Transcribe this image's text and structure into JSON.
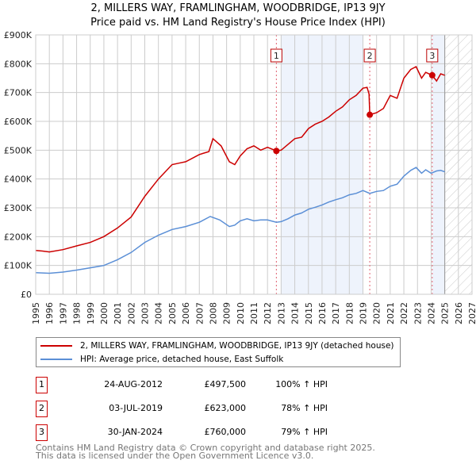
{
  "chart_data": {
    "type": "line",
    "title": "2, MILLERS WAY, FRAMLINGHAM, WOODBRIDGE, IP13 9JY",
    "subtitle": "Price paid vs. HM Land Registry's House Price Index (HPI)",
    "xlim": [
      1995,
      2027
    ],
    "ylim": [
      0,
      900000
    ],
    "x_ticks": [
      "1995",
      "1996",
      "1997",
      "1998",
      "1999",
      "2000",
      "2001",
      "2002",
      "2003",
      "2004",
      "2005",
      "2006",
      "2007",
      "2008",
      "2009",
      "2010",
      "2011",
      "2012",
      "2013",
      "2014",
      "2015",
      "2016",
      "2017",
      "2018",
      "2019",
      "2020",
      "2021",
      "2022",
      "2023",
      "2024",
      "2025",
      "2026",
      "2027"
    ],
    "y_ticks": [
      {
        "v": 0,
        "label": "£0"
      },
      {
        "v": 100000,
        "label": "£100K"
      },
      {
        "v": 200000,
        "label": "£200K"
      },
      {
        "v": 300000,
        "label": "£300K"
      },
      {
        "v": 400000,
        "label": "£400K"
      },
      {
        "v": 500000,
        "label": "£500K"
      },
      {
        "v": 600000,
        "label": "£600K"
      },
      {
        "v": 700000,
        "label": "£700K"
      },
      {
        "v": 800000,
        "label": "£800K"
      },
      {
        "v": 900000,
        "label": "£900K"
      }
    ],
    "grid": true,
    "series": [
      {
        "name": "2, MILLERS WAY, FRAMLINGHAM, WOODBRIDGE, IP13 9JY (detached house)",
        "color": "#cc0000",
        "x": [
          1995,
          1995.5,
          1996,
          1997,
          1998,
          1999,
          2000,
          2001,
          2002,
          2003,
          2004,
          2005,
          2005.5,
          2006,
          2007,
          2007.7,
          2008,
          2008.6,
          2009.2,
          2009.6,
          2010,
          2010.5,
          2011,
          2011.5,
          2012,
          2012.65,
          2013,
          2013.5,
          2014,
          2014.5,
          2015,
          2015.5,
          2016,
          2016.5,
          2017,
          2017.5,
          2018,
          2018.5,
          2019,
          2019.3,
          2019.45,
          2019.5,
          2020,
          2020.5,
          2021,
          2021.5,
          2022,
          2022.5,
          2022.9,
          2023.3,
          2023.6,
          2024.08,
          2024.4,
          2024.7,
          2025
        ],
        "y": [
          152000,
          150000,
          147000,
          155000,
          168000,
          180000,
          200000,
          230000,
          268000,
          340000,
          400000,
          450000,
          455000,
          460000,
          485000,
          495000,
          540000,
          515000,
          460000,
          450000,
          480000,
          505000,
          515000,
          500000,
          510000,
          497500,
          500000,
          520000,
          540000,
          545000,
          575000,
          590000,
          600000,
          615000,
          635000,
          650000,
          675000,
          690000,
          715000,
          718000,
          695000,
          623000,
          630000,
          645000,
          690000,
          680000,
          750000,
          780000,
          790000,
          750000,
          770000,
          760000,
          740000,
          765000,
          760000
        ]
      },
      {
        "name": "HPI: Average price, detached house, East Suffolk",
        "color": "#5b8fd6",
        "x": [
          1995,
          1996,
          1997,
          1998,
          1999,
          2000,
          2001,
          2002,
          2003,
          2004,
          2005,
          2006,
          2007,
          2007.8,
          2008.5,
          2009.2,
          2009.6,
          2010,
          2010.5,
          2011,
          2011.5,
          2012,
          2012.65,
          2013,
          2013.5,
          2014,
          2014.5,
          2015,
          2015.5,
          2016,
          2016.5,
          2017,
          2017.5,
          2018,
          2018.5,
          2019,
          2019.5,
          2020,
          2020.5,
          2021,
          2021.5,
          2022,
          2022.5,
          2022.9,
          2023.3,
          2023.6,
          2024,
          2024.4,
          2024.7,
          2025
        ],
        "y": [
          75000,
          73000,
          77000,
          84000,
          92000,
          100000,
          120000,
          145000,
          180000,
          205000,
          225000,
          235000,
          250000,
          270000,
          258000,
          235000,
          240000,
          255000,
          262000,
          255000,
          258000,
          258000,
          250000,
          252000,
          262000,
          275000,
          282000,
          295000,
          302000,
          310000,
          320000,
          328000,
          335000,
          345000,
          350000,
          360000,
          350000,
          357000,
          360000,
          375000,
          382000,
          410000,
          430000,
          440000,
          420000,
          432000,
          420000,
          428000,
          430000,
          425000
        ]
      }
    ],
    "sales": [
      {
        "label": "1",
        "x": 2012.65,
        "y": 497500,
        "date": "24-AUG-2012",
        "price": "£497,500",
        "hpi": "100% ↑ HPI"
      },
      {
        "label": "2",
        "x": 2019.5,
        "y": 623000,
        "date": "03-JUL-2019",
        "price": "£623,000",
        "hpi": "78% ↑ HPI"
      },
      {
        "label": "3",
        "x": 2024.08,
        "y": 760000,
        "date": "30-JAN-2024",
        "price": "£760,000",
        "hpi": "79% ↑ HPI"
      }
    ],
    "shaded_ranges": [
      [
        2013,
        2019
      ],
      [
        2024.08,
        2025
      ]
    ],
    "hatched_range": [
      2025,
      2027
    ],
    "legend": "bottom"
  },
  "footer": {
    "line1": "Contains HM Land Registry data © Crown copyright and database right 2025.",
    "line2": "This data is licensed under the Open Government Licence v3.0."
  }
}
